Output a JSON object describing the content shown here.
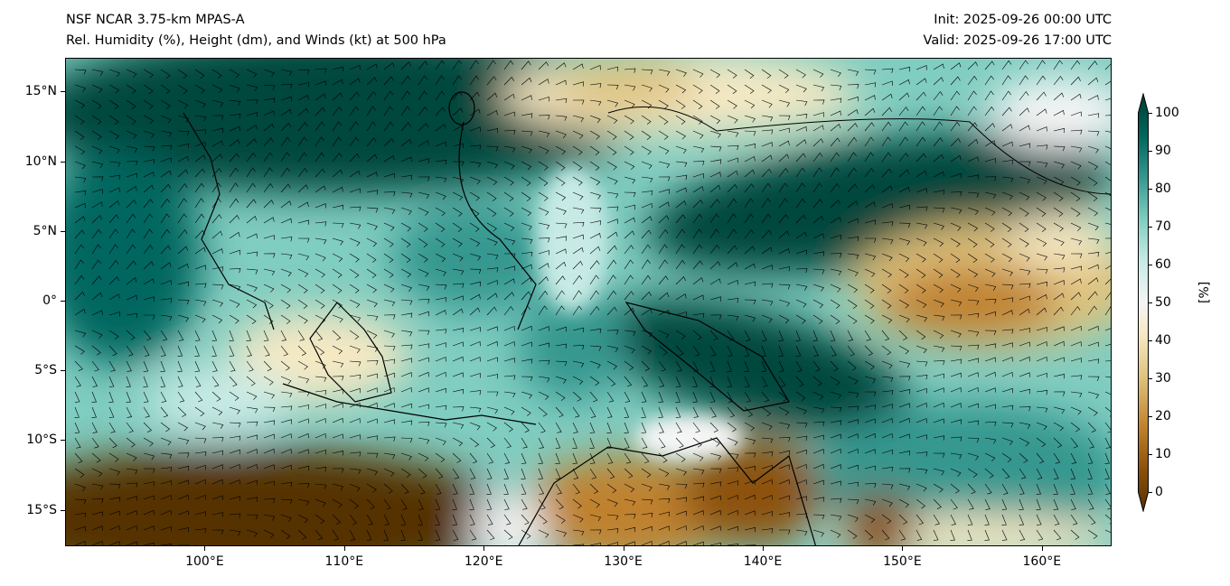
{
  "header": {
    "title_line1": "NSF NCAR 3.75-km MPAS-A",
    "title_line2": "Rel. Humidity (%), Height (dm), and Winds (kt) at 500 hPa",
    "init": "Init: 2025-09-26 00:00 UTC",
    "valid": "Valid: 2025-09-26 17:00 UTC"
  },
  "map": {
    "extent_lon": [
      90,
      165
    ],
    "extent_lat": [
      -17.5,
      17.5
    ],
    "lon_ticks": [
      {
        "value": 100,
        "label": "100°E"
      },
      {
        "value": 110,
        "label": "110°E"
      },
      {
        "value": 120,
        "label": "120°E"
      },
      {
        "value": 130,
        "label": "130°E"
      },
      {
        "value": 140,
        "label": "140°E"
      },
      {
        "value": 150,
        "label": "150°E"
      },
      {
        "value": 160,
        "label": "160°E"
      }
    ],
    "lat_ticks": [
      {
        "value": 15,
        "label": "15°N"
      },
      {
        "value": 10,
        "label": "10°N"
      },
      {
        "value": 5,
        "label": "5°N"
      },
      {
        "value": 0,
        "label": "0°"
      },
      {
        "value": -5,
        "label": "5°S"
      },
      {
        "value": -10,
        "label": "10°S"
      },
      {
        "value": -15,
        "label": "15°S"
      }
    ]
  },
  "colorbar": {
    "label": "[%]",
    "range": [
      0,
      100
    ],
    "ticks": [
      "0",
      "10",
      "20",
      "30",
      "40",
      "50",
      "60",
      "70",
      "80",
      "90",
      "100"
    ],
    "colors": [
      "#543005",
      "#8c510a",
      "#bf812d",
      "#dfc27d",
      "#f6e8c3",
      "#f5f5f5",
      "#c7eae5",
      "#80cdc1",
      "#35978f",
      "#01665e",
      "#003c30"
    ]
  }
}
